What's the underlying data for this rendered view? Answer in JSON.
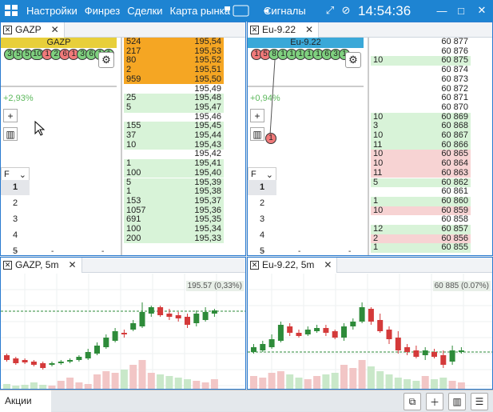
{
  "topbar": {
    "menu": [
      "Настройки",
      "Финрез",
      "Сделки",
      "Карта рынка"
    ],
    "signals": "Сигналы",
    "clock": "14:54:36",
    "bg_color": "#1e84d2"
  },
  "panels": {
    "left": {
      "tab": "GAZP",
      "ticker": "GAZP",
      "ticker_color": "#e8cf3a",
      "circles": [
        "3",
        "5",
        "5",
        "10",
        "1",
        "2",
        "6",
        "1",
        "3",
        "6",
        "1",
        "1"
      ],
      "change": "+2,93%",
      "filter": "F",
      "levels": [
        "1",
        "2",
        "3",
        "4",
        "5"
      ],
      "dashes": [
        "-",
        "-",
        "-"
      ],
      "orderbook": [
        {
          "vol": "524",
          "price": "195,54",
          "side": "ask"
        },
        {
          "vol": "217",
          "price": "195,53",
          "side": "ask"
        },
        {
          "vol": "80",
          "price": "195,52",
          "side": "ask"
        },
        {
          "vol": "2",
          "price": "195,51",
          "side": "ask"
        },
        {
          "vol": "959",
          "price": "195,50",
          "side": "ask"
        },
        {
          "vol": "",
          "price": "195,49",
          "side": "empty"
        },
        {
          "vol": "25",
          "price": "195,48",
          "side": "bid"
        },
        {
          "vol": "5",
          "price": "195,47",
          "side": "bid"
        },
        {
          "vol": "",
          "price": "195,46",
          "side": "empty"
        },
        {
          "vol": "155",
          "price": "195,45",
          "side": "bid"
        },
        {
          "vol": "37",
          "price": "195,44",
          "side": "bid"
        },
        {
          "vol": "10",
          "price": "195,43",
          "side": "bid"
        },
        {
          "vol": "",
          "price": "195,42",
          "side": "empty"
        },
        {
          "vol": "1",
          "price": "195,41",
          "side": "bid"
        },
        {
          "vol": "100",
          "price": "195,40",
          "side": "bid"
        },
        {
          "vol": "5",
          "price": "195,39",
          "side": "bid"
        },
        {
          "vol": "1",
          "price": "195,38",
          "side": "bid"
        },
        {
          "vol": "153",
          "price": "195,37",
          "side": "bid"
        },
        {
          "vol": "1057",
          "price": "195,36",
          "side": "bid"
        },
        {
          "vol": "691",
          "price": "195,35",
          "side": "bid"
        },
        {
          "vol": "100",
          "price": "195,34",
          "side": "bid"
        },
        {
          "vol": "200",
          "price": "195,33",
          "side": "bid"
        }
      ]
    },
    "right": {
      "tab": "Eu-9.22",
      "ticker": "Eu-9.22",
      "ticker_color": "#3aa8d8",
      "circles": [
        "1",
        "5",
        "8",
        "1",
        "1",
        "1",
        "1",
        "1",
        "6",
        "3",
        "1"
      ],
      "change": "+0,94%",
      "filter": "F",
      "levels": [
        "1",
        "2",
        "3",
        "4",
        "5"
      ],
      "dashes": [
        "-",
        "-",
        "-"
      ],
      "marker": "1",
      "orderbook": [
        {
          "vol": "",
          "price": "60 877",
          "side": "empty"
        },
        {
          "vol": "",
          "price": "60 876",
          "side": "empty"
        },
        {
          "vol": "10",
          "price": "60 875",
          "side": "bid"
        },
        {
          "vol": "",
          "price": "60 874",
          "side": "empty"
        },
        {
          "vol": "",
          "price": "60 873",
          "side": "empty"
        },
        {
          "vol": "",
          "price": "60 872",
          "side": "empty"
        },
        {
          "vol": "",
          "price": "60 871",
          "side": "empty"
        },
        {
          "vol": "",
          "price": "60 870",
          "side": "empty"
        },
        {
          "vol": "10",
          "price": "60 869",
          "side": "bid"
        },
        {
          "vol": "3",
          "price": "60 868",
          "side": "bid"
        },
        {
          "vol": "10",
          "price": "60 867",
          "side": "bid"
        },
        {
          "vol": "11",
          "price": "60 866",
          "side": "bid"
        },
        {
          "vol": "10",
          "price": "60 865",
          "side": "ask"
        },
        {
          "vol": "10",
          "price": "60 864",
          "side": "ask"
        },
        {
          "vol": "11",
          "price": "60 863",
          "side": "ask"
        },
        {
          "vol": "5",
          "price": "60 862",
          "side": "bid"
        },
        {
          "vol": "",
          "price": "60 861",
          "side": "empty"
        },
        {
          "vol": "1",
          "price": "60 860",
          "side": "bid"
        },
        {
          "vol": "10",
          "price": "60 859",
          "side": "ask"
        },
        {
          "vol": "",
          "price": "60 858",
          "side": "empty"
        },
        {
          "vol": "12",
          "price": "60 857",
          "side": "bid"
        },
        {
          "vol": "2",
          "price": "60 856",
          "side": "ask"
        },
        {
          "vol": "1",
          "price": "60 855",
          "side": "bid"
        }
      ]
    }
  },
  "charts": {
    "left": {
      "tab": "GAZP, 5m",
      "badge": "195.57 (0,33%)"
    },
    "right": {
      "tab": "Eu-9.22, 5m",
      "badge": "60 885 (0.07%)"
    }
  },
  "footer": {
    "tab": "Акции"
  },
  "colors": {
    "ask": "#f5a623",
    "bid": "#d8f3d8",
    "ask_eur": "#f7d3d3",
    "green": "#2e8b3a",
    "red": "#d43a3a"
  }
}
